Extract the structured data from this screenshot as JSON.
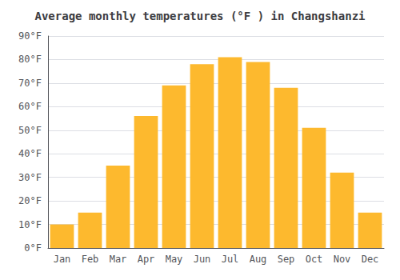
{
  "chart_data": {
    "type": "bar",
    "title": "Average monthly temperatures (°F ) in Changshanzi",
    "categories": [
      "Jan",
      "Feb",
      "Mar",
      "Apr",
      "May",
      "Jun",
      "Jul",
      "Aug",
      "Sep",
      "Oct",
      "Nov",
      "Dec"
    ],
    "values": [
      10,
      15,
      35,
      56,
      69,
      78,
      81,
      79,
      68,
      51,
      32,
      15
    ],
    "color": "#FDB92E",
    "ylim": [
      0,
      90
    ],
    "yticks": [
      {
        "value": 0,
        "label": "0°F"
      },
      {
        "value": 10,
        "label": "10°F"
      },
      {
        "value": 20,
        "label": "20°F"
      },
      {
        "value": 30,
        "label": "30°F"
      },
      {
        "value": 40,
        "label": "40°F"
      },
      {
        "value": 50,
        "label": "50°F"
      },
      {
        "value": 60,
        "label": "60°F"
      },
      {
        "value": 70,
        "label": "70°F"
      },
      {
        "value": 80,
        "label": "80°F"
      },
      {
        "value": 90,
        "label": "90°F"
      }
    ],
    "grid": true
  }
}
